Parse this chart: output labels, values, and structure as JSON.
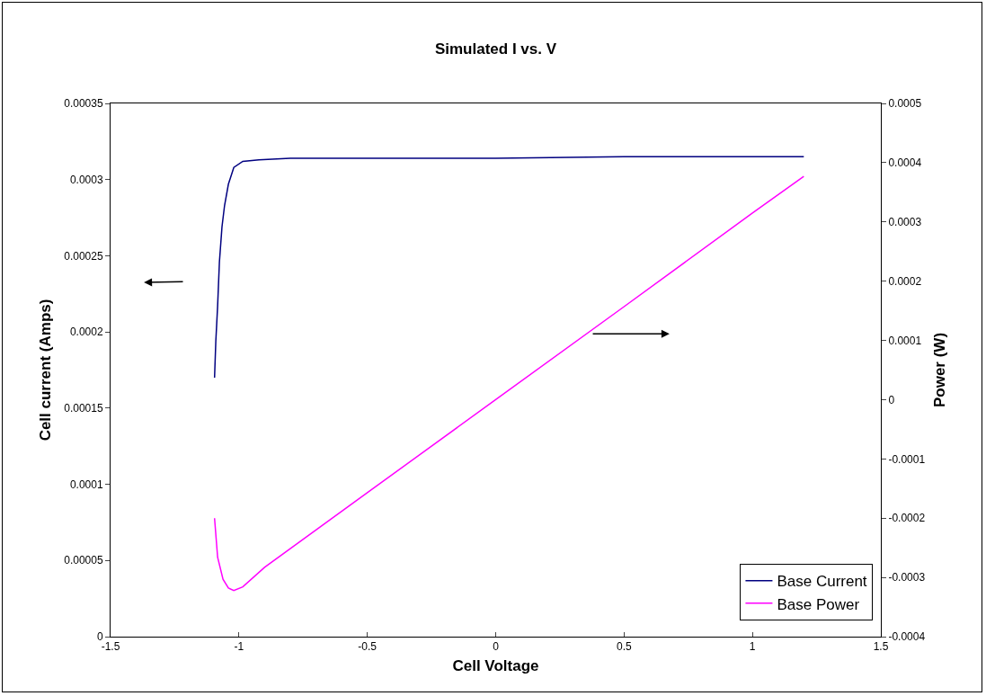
{
  "chart_data": {
    "type": "line",
    "title": "Simulated I vs. V",
    "xlabel": "Cell Voltage",
    "ylabel": "Cell current (Amps)",
    "y2label": "Power (W)",
    "xlim": [
      -1.5,
      1.5
    ],
    "xticks": [
      -1.5,
      -1,
      -0.5,
      0,
      0.5,
      1,
      1.5
    ],
    "ylim": [
      0,
      0.00035
    ],
    "yticks": [
      0,
      {
        "value": 5e-05,
        "label": "0.00005"
      },
      0.0001,
      0.00015,
      0.0002,
      0.00025,
      0.0003,
      0.00035
    ],
    "y2lim": [
      -0.0004,
      0.0005
    ],
    "y2ticks": [
      -0.0004,
      -0.0003,
      -0.0002,
      -0.0001,
      0,
      0.0001,
      0.0002,
      0.0003,
      0.0004,
      0.0005
    ],
    "grid": false,
    "legend": "bottom right",
    "marker": "none",
    "line_style": "solid",
    "series": [
      {
        "name": "Base Current",
        "color": "#000080",
        "x": [
          -1.095,
          -1.09,
          -1.083,
          -1.076,
          -1.066,
          -1.056,
          -1.041,
          -1.02,
          -0.985,
          -0.922,
          -0.8,
          -0.5,
          0,
          0.5,
          1,
          1.2
        ],
        "values": [
          0.00017,
          0.000194,
          0.000217,
          0.000246,
          0.000269,
          0.000283,
          0.000297,
          0.000308,
          0.000312,
          0.000313,
          0.000314,
          0.000314,
          0.000314,
          0.000315,
          0.000315,
          0.000315
        ]
      },
      {
        "name": "Base Power",
        "color": "#ff00ff",
        "axis": "y2",
        "x": [
          -1.095,
          -1.083,
          -1.062,
          -1.041,
          -1.02,
          -0.985,
          -0.9,
          -0.5,
          0,
          0.5,
          1,
          1.2
        ],
        "values": [
          -0.0002,
          -0.000266,
          -0.000303,
          -0.000318,
          -0.000322,
          -0.000316,
          -0.000283,
          -0.000157,
          0,
          0.000157,
          0.000315,
          0.000377
        ]
      }
    ]
  }
}
